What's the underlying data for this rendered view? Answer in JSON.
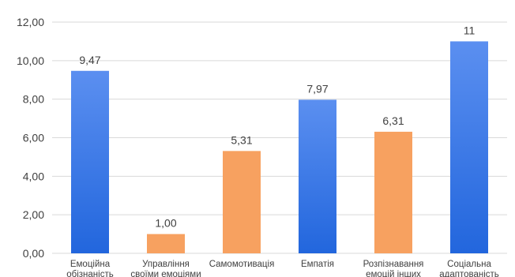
{
  "chart_data": {
    "type": "bar",
    "categories": [
      [
        "Емоційна",
        "обізнаність"
      ],
      [
        "Управління",
        "своїми емоціями"
      ],
      [
        "Самомотивація"
      ],
      [
        "Емпатія"
      ],
      [
        "Розпізнавання",
        "емоцій інших"
      ],
      [
        "Соціальна",
        "адаптованість"
      ]
    ],
    "values": [
      9.47,
      1.0,
      5.31,
      7.97,
      6.31,
      11
    ],
    "data_labels": [
      "9,47",
      "1,00",
      "5,31",
      "7,97",
      "6,31",
      "11"
    ],
    "bar_colors": [
      "blue",
      "orange",
      "orange",
      "blue",
      "orange",
      "blue"
    ],
    "y_ticks": [
      "0,00",
      "2,00",
      "4,00",
      "6,00",
      "8,00",
      "10,00",
      "12,00"
    ],
    "ylim": [
      0,
      12
    ],
    "grid": true,
    "legend": "none",
    "title": "",
    "xlabel": "",
    "ylabel": ""
  },
  "colors": {
    "blue_top": "#5b8ff0",
    "blue_bottom": "#2266dd",
    "orange": "#f7a160",
    "grid": "#d9d9d9",
    "text": "#404040"
  }
}
